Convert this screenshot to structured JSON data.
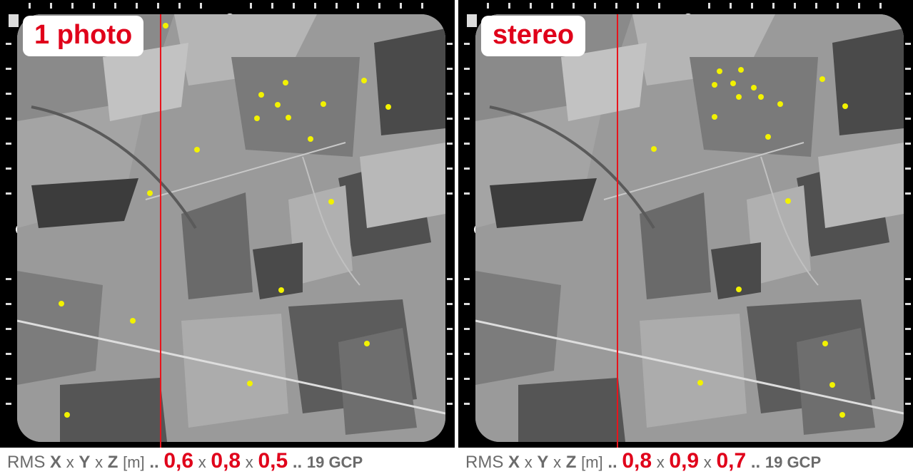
{
  "panels": [
    {
      "label": "1 photo",
      "caption": {
        "prefix": "RMS",
        "x_letter": "X",
        "y_letter": "Y",
        "z_letter": "Z",
        "times": "x",
        "unit": "[m]",
        "sep1": "..",
        "rms_x": "0,6",
        "rms_y": "0,8",
        "rms_z": "0,5",
        "sep2": "..",
        "gcp": "19 GCP"
      }
    },
    {
      "label": "stereo",
      "caption": {
        "prefix": "RMS",
        "x_letter": "X",
        "y_letter": "Y",
        "z_letter": "Z",
        "times": "x",
        "unit": "[m]",
        "sep1": "..",
        "rms_x": "0,8",
        "rms_y": "0,9",
        "rms_z": "0,7",
        "sep2": "..",
        "gcp": "19 GCP"
      }
    }
  ],
  "colors": {
    "label_red": "#e0001a",
    "gcp_marker": "#f2f200",
    "line_red": "#e8141c",
    "caption_gray": "#6b6b6b"
  }
}
